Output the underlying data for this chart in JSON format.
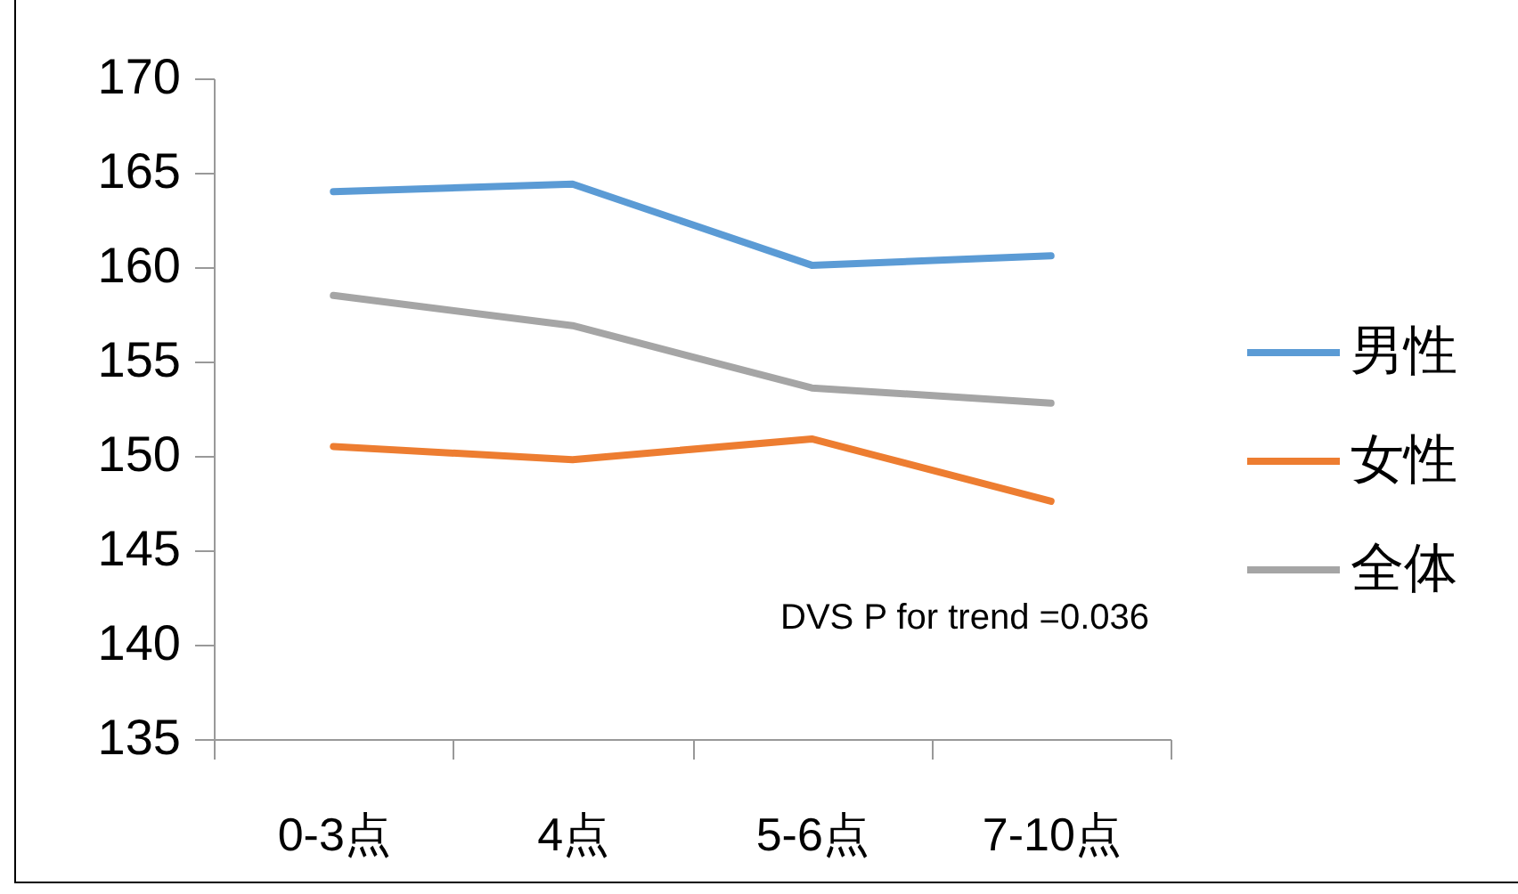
{
  "chart_data": {
    "type": "line",
    "categories": [
      "0-3点",
      "4点",
      "5-6点",
      "7-10点"
    ],
    "series": [
      {
        "name": "男性",
        "color": "#5b9bd5",
        "values": [
          164.0,
          164.4,
          160.1,
          160.6
        ]
      },
      {
        "name": "女性",
        "color": "#ed7d31",
        "values": [
          150.5,
          149.8,
          150.9,
          147.6
        ]
      },
      {
        "name": "全体",
        "color": "#a5a5a5",
        "values": [
          158.5,
          156.9,
          153.6,
          152.8
        ]
      }
    ],
    "ylim": [
      135,
      170
    ],
    "yticks": [
      135,
      140,
      145,
      150,
      155,
      160,
      165,
      170
    ],
    "grid": false,
    "legend": "right",
    "annotations": [
      "DVS P for trend =0.036"
    ]
  }
}
